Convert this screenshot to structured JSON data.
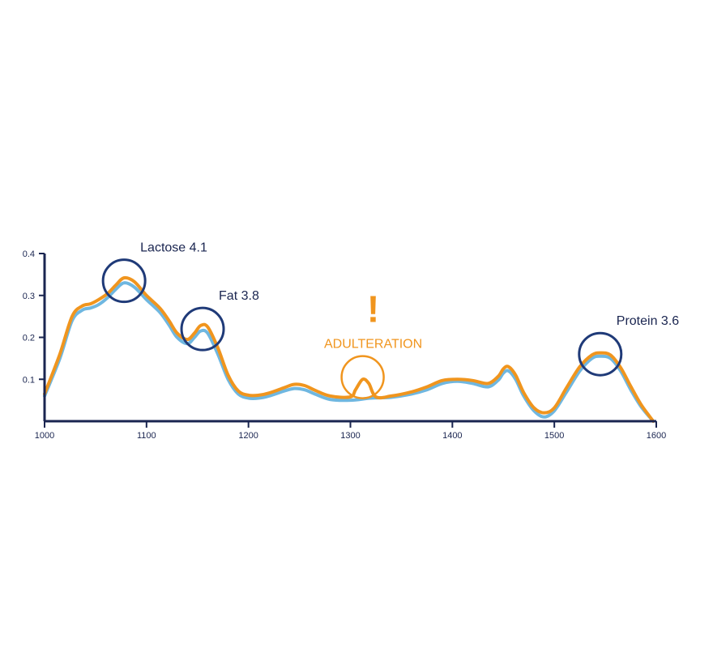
{
  "chart_data": {
    "type": "line",
    "title": "",
    "xlabel": "",
    "ylabel": "",
    "xlim": [
      1000,
      1600
    ],
    "ylim": [
      0,
      0.4
    ],
    "xticks": [
      "1000",
      "1100",
      "1200",
      "1300",
      "1400",
      "1500",
      "1600"
    ],
    "yticks": [
      "0.1",
      "0.2",
      "0.3",
      "0.4"
    ],
    "grid": false,
    "colors": {
      "axis": "#1a2550",
      "reference": "#6fb7e0",
      "sample": "#f0951e",
      "circle": "#1f3a78"
    },
    "series": [
      {
        "key": "reference",
        "x": [
          1000,
          1015,
          1027,
          1037,
          1045,
          1053,
          1062,
          1070,
          1078,
          1088,
          1100,
          1113,
          1122,
          1130,
          1140,
          1147,
          1153,
          1160,
          1170,
          1180,
          1190,
          1200,
          1210,
          1220,
          1235,
          1245,
          1255,
          1265,
          1280,
          1300,
          1320,
          1340,
          1360,
          1375,
          1390,
          1405,
          1420,
          1435,
          1445,
          1450,
          1455,
          1462,
          1470,
          1480,
          1490,
          1500,
          1512,
          1525,
          1537,
          1545,
          1555,
          1565,
          1575,
          1585,
          1597
        ],
        "y": [
          0.06,
          0.15,
          0.24,
          0.265,
          0.27,
          0.278,
          0.295,
          0.315,
          0.33,
          0.32,
          0.29,
          0.26,
          0.23,
          0.2,
          0.185,
          0.2,
          0.215,
          0.21,
          0.16,
          0.1,
          0.065,
          0.055,
          0.055,
          0.06,
          0.072,
          0.078,
          0.075,
          0.065,
          0.052,
          0.05,
          0.055,
          0.057,
          0.065,
          0.075,
          0.09,
          0.095,
          0.09,
          0.082,
          0.098,
          0.115,
          0.12,
          0.1,
          0.06,
          0.025,
          0.01,
          0.025,
          0.07,
          0.12,
          0.15,
          0.155,
          0.15,
          0.12,
          0.075,
          0.035,
          0.0
        ]
      },
      {
        "key": "sample",
        "x": [
          1000,
          1015,
          1027,
          1037,
          1045,
          1053,
          1062,
          1070,
          1078,
          1088,
          1100,
          1113,
          1122,
          1130,
          1140,
          1147,
          1153,
          1160,
          1170,
          1180,
          1190,
          1200,
          1210,
          1220,
          1235,
          1245,
          1255,
          1265,
          1280,
          1300,
          1305,
          1312,
          1318,
          1325,
          1340,
          1360,
          1375,
          1390,
          1405,
          1420,
          1435,
          1445,
          1450,
          1455,
          1462,
          1470,
          1480,
          1490,
          1500,
          1512,
          1525,
          1537,
          1545,
          1555,
          1565,
          1575,
          1585,
          1597
        ],
        "y": [
          0.065,
          0.16,
          0.25,
          0.275,
          0.28,
          0.29,
          0.305,
          0.325,
          0.342,
          0.333,
          0.3,
          0.27,
          0.24,
          0.21,
          0.195,
          0.21,
          0.228,
          0.225,
          0.175,
          0.11,
          0.072,
          0.062,
          0.062,
          0.067,
          0.08,
          0.088,
          0.085,
          0.074,
          0.06,
          0.058,
          0.075,
          0.1,
          0.09,
          0.058,
          0.06,
          0.07,
          0.082,
          0.097,
          0.1,
          0.097,
          0.09,
          0.107,
          0.125,
          0.13,
          0.11,
          0.068,
          0.032,
          0.02,
          0.032,
          0.08,
          0.13,
          0.158,
          0.163,
          0.158,
          0.128,
          0.083,
          0.04,
          0.0
        ]
      }
    ],
    "annotations": [
      {
        "key": "lactose",
        "text": "Lactose 4.1",
        "x": 1078,
        "y": 0.335,
        "style": "dark"
      },
      {
        "key": "fat",
        "text": "Fat 3.8",
        "x": 1155,
        "y": 0.22,
        "style": "dark"
      },
      {
        "key": "adulteration",
        "text": "ADULTERATION",
        "mark": "!",
        "x": 1312,
        "y": 0.105,
        "style": "warning"
      },
      {
        "key": "protein",
        "text": "Protein 3.6",
        "x": 1545,
        "y": 0.16,
        "style": "dark"
      }
    ]
  }
}
